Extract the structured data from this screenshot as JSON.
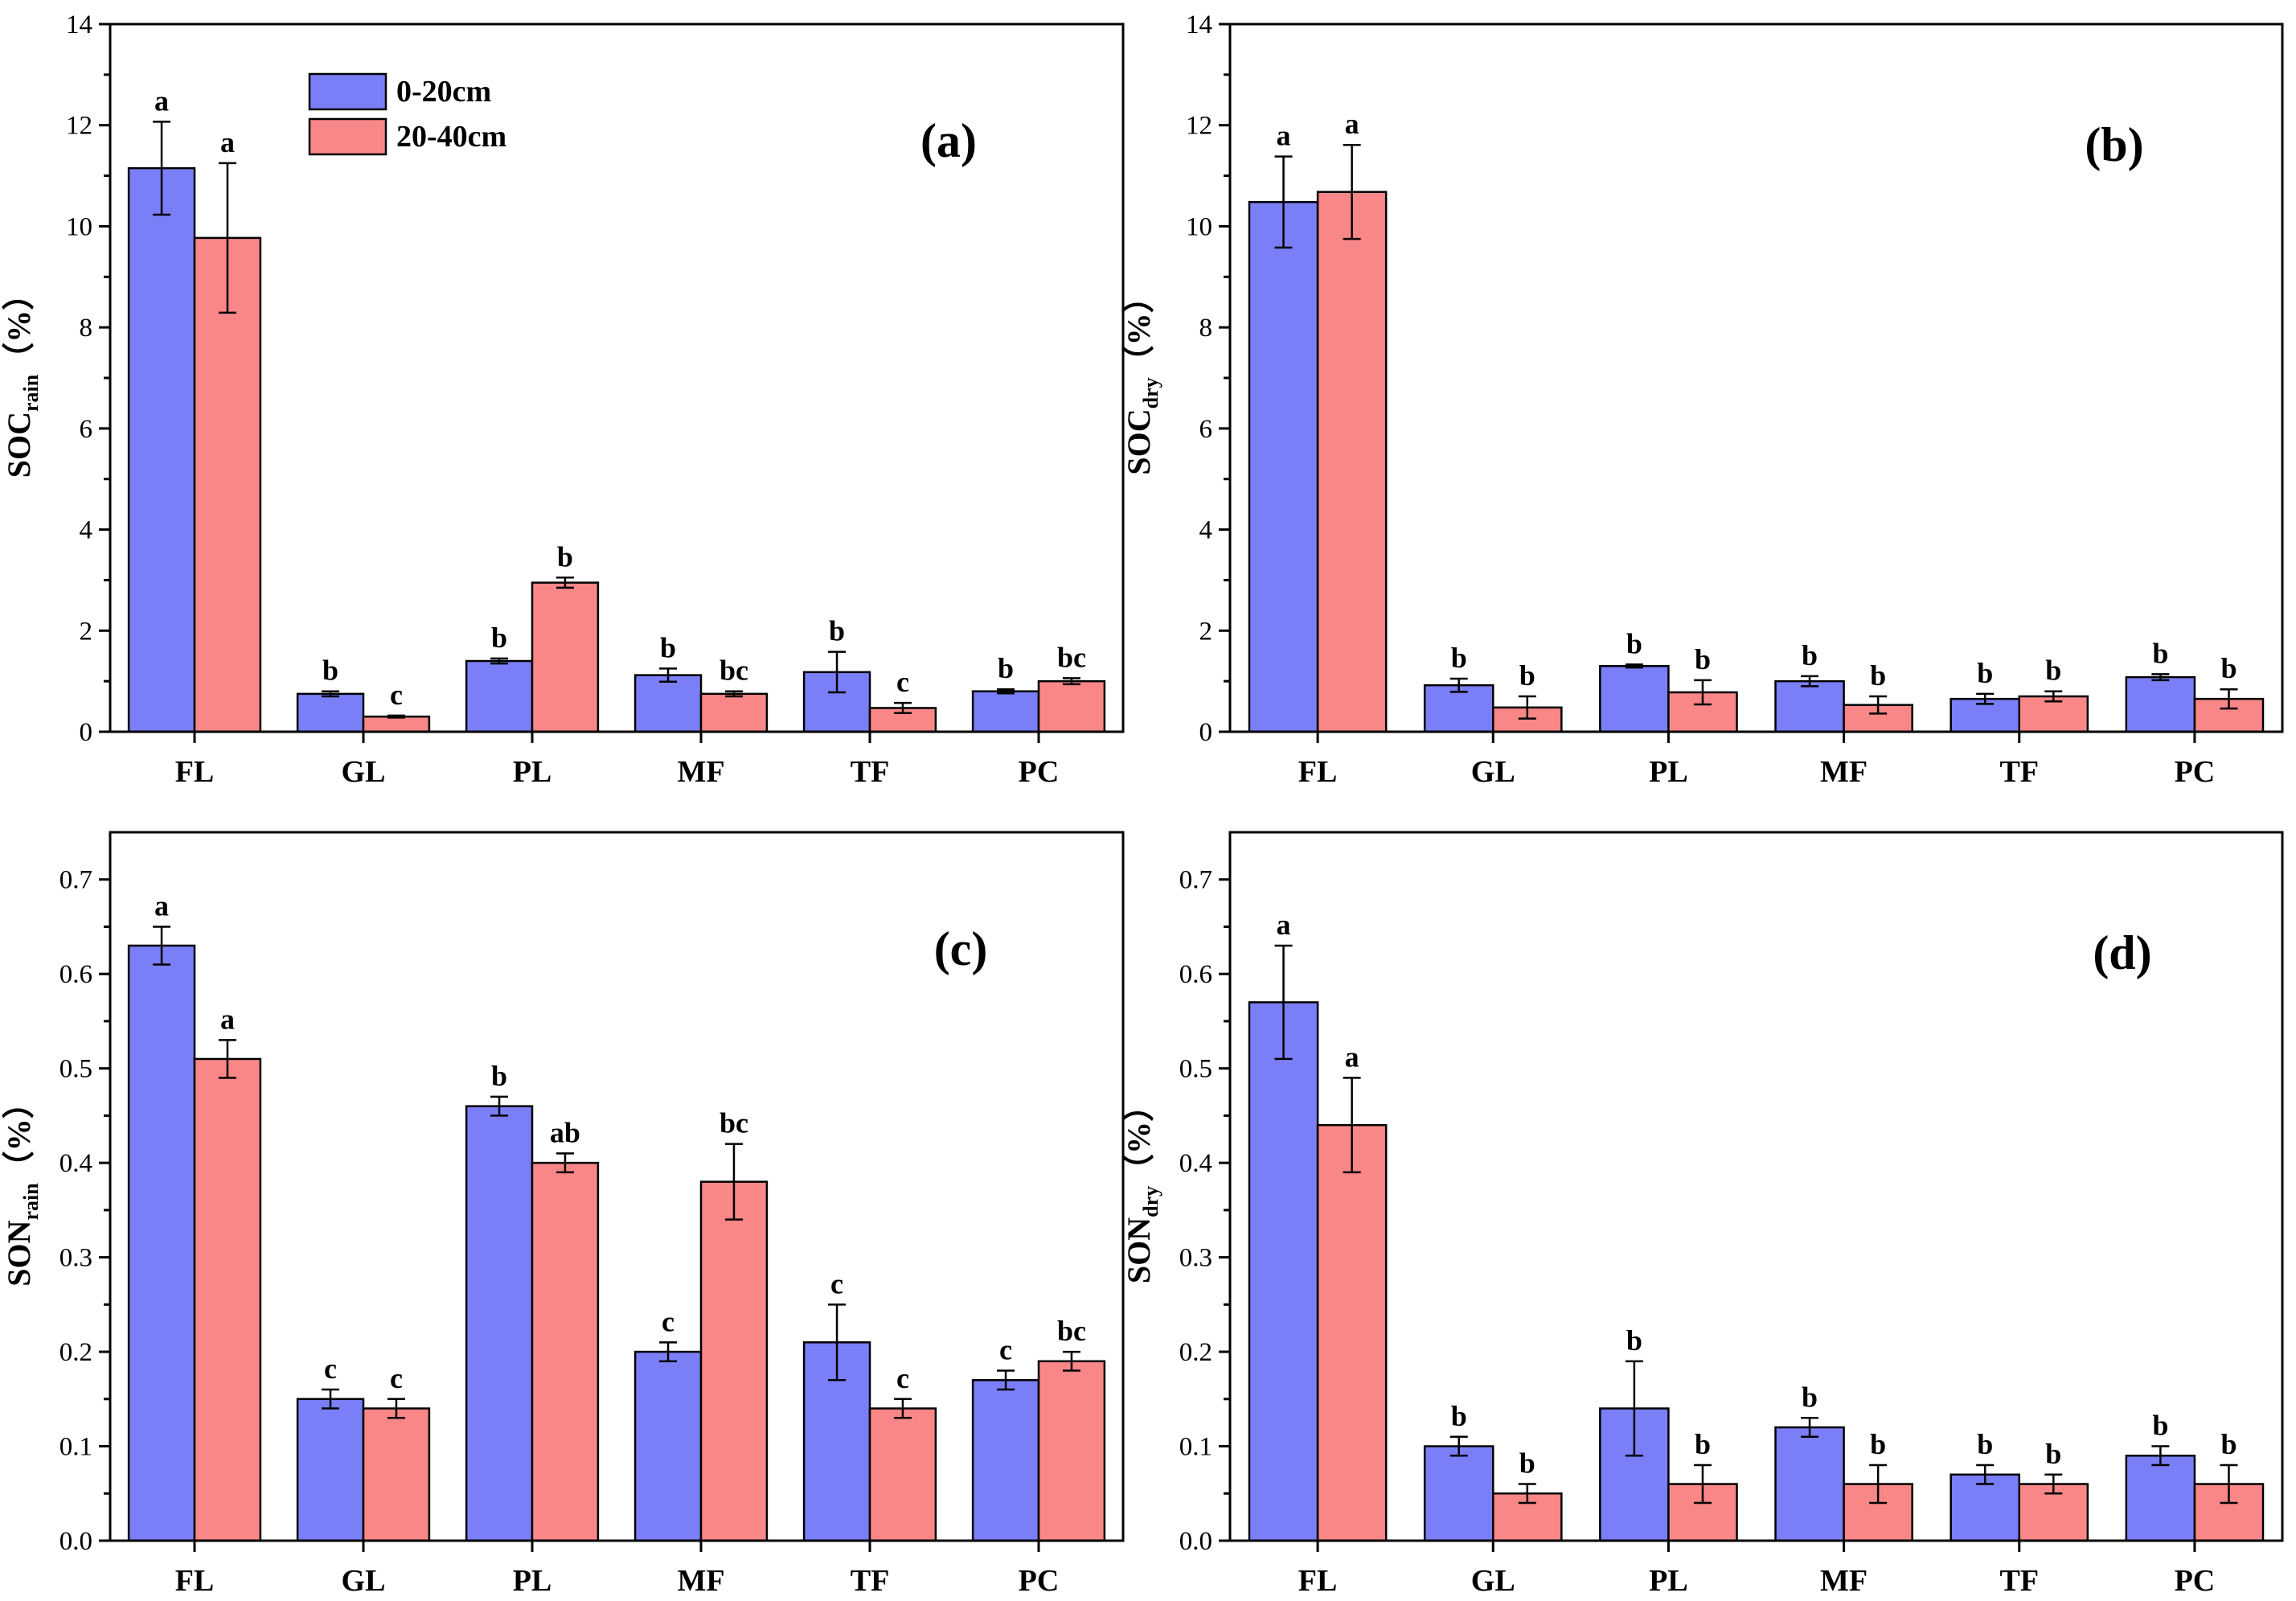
{
  "colors": {
    "series_0_20": "#7b7ff7",
    "series_20_40": "#f98787"
  },
  "legend": {
    "items": [
      "0-20cm",
      "20-40cm"
    ]
  },
  "chart_data": [
    {
      "type": "bar",
      "panel_label": "(a)",
      "ylabel_main": "SOC",
      "ylabel_sub": "rain",
      "ylabel_unit": "（%）",
      "categories": [
        "FL",
        "GL",
        "PL",
        "MF",
        "TF",
        "PC"
      ],
      "ylim": [
        0,
        14
      ],
      "yticks": [
        0,
        2,
        4,
        6,
        8,
        10,
        12,
        14
      ],
      "ytick_labels": [
        "0",
        "2",
        "4",
        "6",
        "8",
        "10",
        "12",
        "14"
      ],
      "series": [
        {
          "name": "0-20cm",
          "values": [
            11.15,
            0.75,
            1.4,
            1.12,
            1.18,
            0.8
          ],
          "errors": [
            0.92,
            0.05,
            0.05,
            0.13,
            0.4,
            0.04
          ],
          "labels": [
            "a",
            "b",
            "b",
            "b",
            "b",
            "b"
          ]
        },
        {
          "name": "20-40cm",
          "values": [
            9.77,
            0.3,
            2.95,
            0.75,
            0.47,
            1.0
          ],
          "errors": [
            1.48,
            0.02,
            0.1,
            0.05,
            0.1,
            0.06
          ],
          "labels": [
            "a",
            "c",
            "b",
            "bc",
            "c",
            "bc"
          ]
        }
      ],
      "legend_visible": true
    },
    {
      "type": "bar",
      "panel_label": "(b)",
      "ylabel_main": "SOC",
      "ylabel_sub": "dry",
      "ylabel_unit": "（%）",
      "categories": [
        "FL",
        "GL",
        "PL",
        "MF",
        "TF",
        "PC"
      ],
      "ylim": [
        0,
        14
      ],
      "yticks": [
        0,
        2,
        4,
        6,
        8,
        10,
        12,
        14
      ],
      "ytick_labels": [
        "0",
        "2",
        "4",
        "6",
        "8",
        "10",
        "12",
        "14"
      ],
      "series": [
        {
          "name": "0-20cm",
          "values": [
            10.48,
            0.92,
            1.3,
            1.0,
            0.65,
            1.08
          ],
          "errors": [
            0.9,
            0.13,
            0.03,
            0.1,
            0.1,
            0.06
          ],
          "labels": [
            "a",
            "b",
            "b",
            "b",
            "b",
            "b"
          ]
        },
        {
          "name": "20-40cm",
          "values": [
            10.68,
            0.48,
            0.78,
            0.53,
            0.7,
            0.65
          ],
          "errors": [
            0.93,
            0.22,
            0.24,
            0.17,
            0.1,
            0.19
          ],
          "labels": [
            "a",
            "b",
            "b",
            "b",
            "b",
            "b"
          ]
        }
      ],
      "legend_visible": false
    },
    {
      "type": "bar",
      "panel_label": "(c)",
      "ylabel_main": "SON",
      "ylabel_sub": "rain",
      "ylabel_unit": "（%）",
      "categories": [
        "FL",
        "GL",
        "PL",
        "MF",
        "TF",
        "PC"
      ],
      "ylim": [
        0,
        0.75
      ],
      "yticks": [
        0,
        0.1,
        0.2,
        0.3,
        0.4,
        0.5,
        0.6,
        0.7
      ],
      "ytick_labels": [
        "0.0",
        "0.1",
        "0.2",
        "0.3",
        "0.4",
        "0.5",
        "0.6",
        "0.7"
      ],
      "series": [
        {
          "name": "0-20cm",
          "values": [
            0.63,
            0.15,
            0.46,
            0.2,
            0.21,
            0.17
          ],
          "errors": [
            0.02,
            0.01,
            0.01,
            0.01,
            0.04,
            0.01
          ],
          "labels": [
            "a",
            "c",
            "b",
            "c",
            "c",
            "c"
          ]
        },
        {
          "name": "20-40cm",
          "values": [
            0.51,
            0.14,
            0.4,
            0.38,
            0.14,
            0.19
          ],
          "errors": [
            0.02,
            0.01,
            0.01,
            0.04,
            0.01,
            0.01
          ],
          "labels": [
            "a",
            "c",
            "ab",
            "bc",
            "c",
            "bc"
          ]
        }
      ],
      "legend_visible": false
    },
    {
      "type": "bar",
      "panel_label": "(d)",
      "ylabel_main": "SON",
      "ylabel_sub": "dry",
      "ylabel_unit": "（%）",
      "categories": [
        "FL",
        "GL",
        "PL",
        "MF",
        "TF",
        "PC"
      ],
      "ylim": [
        0,
        0.75
      ],
      "yticks": [
        0,
        0.1,
        0.2,
        0.3,
        0.4,
        0.5,
        0.6,
        0.7
      ],
      "ytick_labels": [
        "0.0",
        "0.1",
        "0.2",
        "0.3",
        "0.4",
        "0.5",
        "0.6",
        "0.7"
      ],
      "series": [
        {
          "name": "0-20cm",
          "values": [
            0.57,
            0.1,
            0.14,
            0.12,
            0.07,
            0.09
          ],
          "errors": [
            0.06,
            0.01,
            0.05,
            0.01,
            0.01,
            0.01
          ],
          "labels": [
            "a",
            "b",
            "b",
            "b",
            "b",
            "b"
          ]
        },
        {
          "name": "20-40cm",
          "values": [
            0.44,
            0.05,
            0.06,
            0.06,
            0.06,
            0.06
          ],
          "errors": [
            0.05,
            0.01,
            0.02,
            0.02,
            0.01,
            0.02
          ],
          "labels": [
            "a",
            "b",
            "b",
            "b",
            "b",
            "b"
          ]
        }
      ],
      "legend_visible": false
    }
  ]
}
